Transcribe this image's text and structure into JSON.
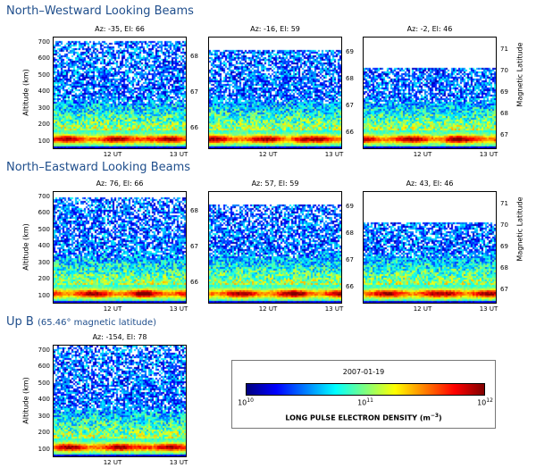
{
  "sections": {
    "nw": "North–Westward Looking Beams",
    "ne": "North–Eastward Looking Beams",
    "up_main": "Up B",
    "up_sub": "(65.46° magnetic latitude)"
  },
  "colorbar": {
    "date": "2007-01-19",
    "label": "LONG PULSE ELECTRON DENSITY (m",
    "label_exp": "−3",
    "label_close": ")",
    "ticks": [
      {
        "base": "10",
        "exp": "10"
      },
      {
        "base": "10",
        "exp": "11"
      },
      {
        "base": "10",
        "exp": "12"
      }
    ],
    "colors": [
      "#00007f",
      "#0000ff",
      "#007fff",
      "#00ffff",
      "#7fff7f",
      "#ffff00",
      "#ff7f00",
      "#ff0000",
      "#7f0000"
    ]
  },
  "axis": {
    "ylabel": "Altitude (km)",
    "rlabel": "Magnetic Latitude",
    "yticks": [
      "700",
      "600",
      "500",
      "400",
      "300",
      "200",
      "100"
    ],
    "xticks": [
      "12 UT",
      "13 UT"
    ]
  },
  "chart_data": [
    {
      "type": "heatmap",
      "title": "Az: -35,  El: 66",
      "xlabel": "",
      "ylabel": "Altitude (km)",
      "x_ticks": [
        "12 UT",
        "13 UT"
      ],
      "y_ticks": [
        100,
        200,
        300,
        400,
        500,
        600,
        700
      ],
      "ylim": [
        50,
        730
      ],
      "right_ticks": [
        "66",
        "67",
        "68"
      ],
      "cutoff_alt": 700,
      "colorbar_range": [
        10000000000.0,
        1000000000000.0
      ],
      "colorbar_scale": "log"
    },
    {
      "type": "heatmap",
      "title": "Az: -16,  El: 59",
      "xlabel": "",
      "ylabel": "",
      "x_ticks": [
        "12 UT",
        "13 UT"
      ],
      "y_ticks": [],
      "ylim": [
        50,
        730
      ],
      "right_ticks": [
        "66",
        "67",
        "68",
        "69"
      ],
      "cutoff_alt": 650,
      "colorbar_range": [
        10000000000.0,
        1000000000000.0
      ],
      "colorbar_scale": "log"
    },
    {
      "type": "heatmap",
      "title": "Az: -2,  El: 46",
      "xlabel": "",
      "ylabel": "",
      "x_ticks": [
        "12 UT",
        "13 UT"
      ],
      "y_ticks": [],
      "ylim": [
        50,
        730
      ],
      "right_ticks": [
        "67",
        "68",
        "69",
        "70",
        "71"
      ],
      "right_label": "Magnetic Latitude",
      "cutoff_alt": 540,
      "colorbar_range": [
        10000000000.0,
        1000000000000.0
      ],
      "colorbar_scale": "log"
    },
    {
      "type": "heatmap",
      "title": "Az: 76,  El: 66",
      "xlabel": "",
      "ylabel": "Altitude (km)",
      "x_ticks": [
        "12 UT",
        "13 UT"
      ],
      "y_ticks": [
        100,
        200,
        300,
        400,
        500,
        600,
        700
      ],
      "ylim": [
        50,
        730
      ],
      "right_ticks": [
        "66",
        "67",
        "68"
      ],
      "cutoff_alt": 690,
      "colorbar_range": [
        10000000000.0,
        1000000000000.0
      ],
      "colorbar_scale": "log"
    },
    {
      "type": "heatmap",
      "title": "Az: 57,  El: 59",
      "xlabel": "",
      "ylabel": "",
      "x_ticks": [
        "12 UT",
        "13 UT"
      ],
      "y_ticks": [],
      "ylim": [
        50,
        730
      ],
      "right_ticks": [
        "66",
        "67",
        "68",
        "69"
      ],
      "cutoff_alt": 650,
      "colorbar_range": [
        10000000000.0,
        1000000000000.0
      ],
      "colorbar_scale": "log"
    },
    {
      "type": "heatmap",
      "title": "Az: 43,  El: 46",
      "xlabel": "",
      "ylabel": "",
      "x_ticks": [
        "12 UT",
        "13 UT"
      ],
      "y_ticks": [],
      "ylim": [
        50,
        730
      ],
      "right_ticks": [
        "67",
        "68",
        "69",
        "70",
        "71"
      ],
      "right_label": "Magnetic Latitude",
      "cutoff_alt": 540,
      "colorbar_range": [
        10000000000.0,
        1000000000000.0
      ],
      "colorbar_scale": "log"
    },
    {
      "type": "heatmap",
      "title": "Az: -154,  El: 78",
      "xlabel": "",
      "ylabel": "Altitude (km)",
      "x_ticks": [
        "12 UT",
        "13 UT"
      ],
      "y_ticks": [
        100,
        200,
        300,
        400,
        500,
        600,
        700
      ],
      "ylim": [
        50,
        730
      ],
      "right_ticks": [],
      "cutoff_alt": 730,
      "colorbar_range": [
        10000000000.0,
        1000000000000.0
      ],
      "colorbar_scale": "log"
    }
  ]
}
